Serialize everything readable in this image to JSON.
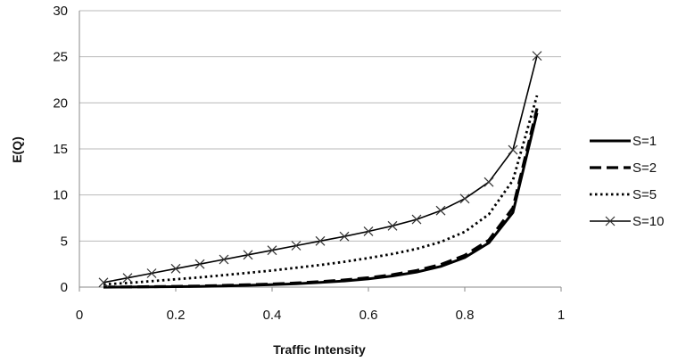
{
  "chart_data": {
    "type": "line",
    "title": "",
    "xlabel": "Traffic Intensity",
    "ylabel": "E(Q)",
    "xlim": [
      0,
      1
    ],
    "ylim": [
      0,
      30
    ],
    "x_ticks": [
      "0",
      "0.2",
      "0.4",
      "0.6",
      "0.8",
      "1"
    ],
    "y_ticks": [
      "0",
      "5",
      "10",
      "15",
      "20",
      "25",
      "30"
    ],
    "grid": "horizontal",
    "legend_position": "right",
    "x": [
      0.05,
      0.1,
      0.15,
      0.2,
      0.25,
      0.3,
      0.35,
      0.4,
      0.45,
      0.5,
      0.55,
      0.6,
      0.65,
      0.7,
      0.75,
      0.8,
      0.85,
      0.9,
      0.95
    ],
    "series": [
      {
        "name": "S=1",
        "style": "solid",
        "color": "#000000",
        "values": [
          0.0,
          0.01,
          0.03,
          0.05,
          0.08,
          0.13,
          0.19,
          0.27,
          0.37,
          0.5,
          0.67,
          0.9,
          1.21,
          1.63,
          2.25,
          3.2,
          4.8,
          8.1,
          18.9
        ]
      },
      {
        "name": "S=2",
        "style": "dashed",
        "color": "#000000",
        "values": [
          0.0,
          0.02,
          0.05,
          0.08,
          0.12,
          0.18,
          0.25,
          0.34,
          0.45,
          0.59,
          0.77,
          1.02,
          1.35,
          1.8,
          2.45,
          3.45,
          5.1,
          8.6,
          19.4
        ]
      },
      {
        "name": "S=5",
        "style": "dotted",
        "color": "#000000",
        "values": [
          0.3,
          0.45,
          0.65,
          0.85,
          1.05,
          1.3,
          1.55,
          1.8,
          2.1,
          2.4,
          2.75,
          3.15,
          3.6,
          4.15,
          4.9,
          6.0,
          7.9,
          11.6,
          20.8
        ]
      },
      {
        "name": "S=10",
        "style": "solid-x",
        "color": "#000000",
        "values": [
          0.5,
          1.0,
          1.5,
          2.0,
          2.5,
          3.0,
          3.5,
          4.0,
          4.5,
          5.0,
          5.5,
          6.05,
          6.65,
          7.35,
          8.3,
          9.6,
          11.4,
          14.9,
          25.1
        ]
      }
    ]
  }
}
